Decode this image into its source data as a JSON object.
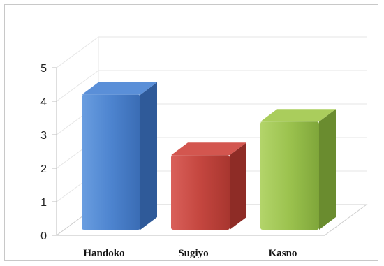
{
  "chart_data": {
    "type": "bar",
    "style": "3d-column",
    "categories": [
      "Handoko",
      "Sugiyo",
      "Kasno"
    ],
    "values": [
      4.4,
      2.6,
      3.6
    ],
    "colors": [
      "#4a7fc8",
      "#c0463f",
      "#98bf4a"
    ],
    "ylim": [
      0,
      5
    ],
    "yticks": [
      0,
      1,
      2,
      3,
      4,
      5
    ],
    "grid": true,
    "legend": "none"
  }
}
